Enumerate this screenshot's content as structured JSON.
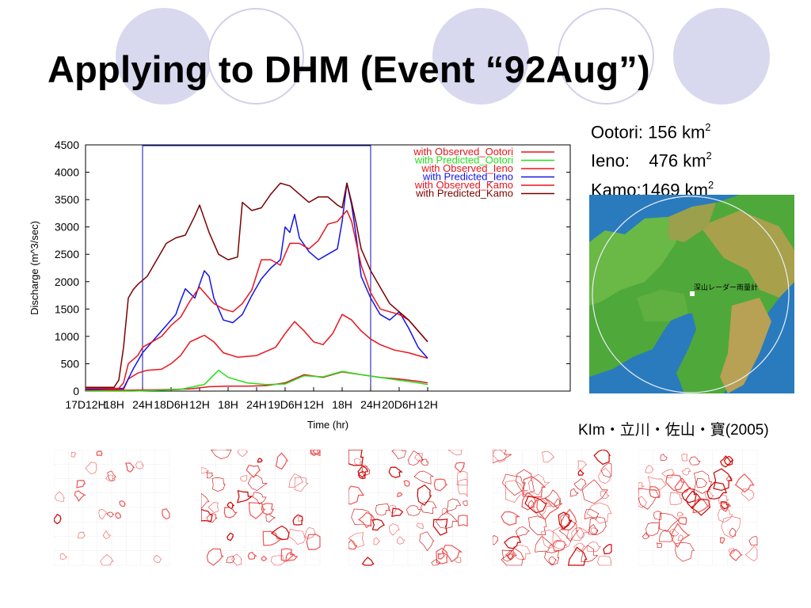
{
  "slide": {
    "title": "Applying to DHM (Event “92Aug”)",
    "areas": [
      {
        "label": "Ootori: 156 km",
        "sup": "2"
      },
      {
        "label": "Ieno:    476 km",
        "sup": "2"
      },
      {
        "label": "Kamo:1469 km",
        "sup": "2"
      }
    ],
    "map_label": "深山レーダー雨量計",
    "citation": "KIm・立川・佐山・寶(2005)"
  },
  "chart_data": {
    "type": "line",
    "xlabel": "Time (hr)",
    "ylabel": "Discharge (m^3/sec)",
    "ylim": [
      0,
      4500
    ],
    "yticks": [
      0,
      500,
      1000,
      1500,
      2000,
      2500,
      3000,
      3500,
      4000,
      4500
    ],
    "xlim": [
      0,
      102
    ],
    "xticks": [
      {
        "x": 0,
        "label": "17D12H"
      },
      {
        "x": 6,
        "label": "18H"
      },
      {
        "x": 12,
        "label": "24H"
      },
      {
        "x": 18,
        "label": "18D6H"
      },
      {
        "x": 24,
        "label": "12H"
      },
      {
        "x": 30,
        "label": "18H"
      },
      {
        "x": 36,
        "label": "24H"
      },
      {
        "x": 42,
        "label": "19D6H"
      },
      {
        "x": 48,
        "label": "12H"
      },
      {
        "x": 54,
        "label": "18H"
      },
      {
        "x": 60,
        "label": "24H"
      },
      {
        "x": 66,
        "label": "20D6H"
      },
      {
        "x": 72,
        "label": "12H"
      }
    ],
    "legend_position": "top-right",
    "series": [
      {
        "name": "with Observed_Ootori",
        "color": "#e8141c",
        "points": [
          [
            0,
            10
          ],
          [
            5,
            10
          ],
          [
            8,
            15
          ],
          [
            12,
            20
          ],
          [
            16,
            25
          ],
          [
            22,
            40
          ],
          [
            26,
            80
          ],
          [
            30,
            90
          ],
          [
            34,
            90
          ],
          [
            38,
            100
          ],
          [
            42,
            150
          ],
          [
            46,
            300
          ],
          [
            50,
            250
          ],
          [
            54,
            350
          ],
          [
            58,
            300
          ],
          [
            62,
            250
          ],
          [
            66,
            220
          ],
          [
            70,
            180
          ],
          [
            72,
            150
          ]
        ]
      },
      {
        "name": "with Predicted_Ootori",
        "color": "#22e01a",
        "points": [
          [
            0,
            0
          ],
          [
            10,
            0
          ],
          [
            14,
            10
          ],
          [
            20,
            30
          ],
          [
            25,
            120
          ],
          [
            28,
            380
          ],
          [
            30,
            250
          ],
          [
            34,
            150
          ],
          [
            38,
            120
          ],
          [
            42,
            130
          ],
          [
            46,
            280
          ],
          [
            50,
            260
          ],
          [
            54,
            360
          ],
          [
            58,
            300
          ],
          [
            62,
            250
          ],
          [
            66,
            200
          ],
          [
            70,
            150
          ],
          [
            72,
            120
          ]
        ]
      },
      {
        "name": "with Observed_Ieno",
        "color": "#e8141c",
        "points": [
          [
            0,
            20
          ],
          [
            8,
            30
          ],
          [
            9,
            220
          ],
          [
            11,
            330
          ],
          [
            13,
            380
          ],
          [
            16,
            400
          ],
          [
            18,
            500
          ],
          [
            20,
            650
          ],
          [
            22,
            900
          ],
          [
            25,
            1020
          ],
          [
            27,
            900
          ],
          [
            29,
            700
          ],
          [
            32,
            620
          ],
          [
            36,
            650
          ],
          [
            40,
            800
          ],
          [
            42,
            1050
          ],
          [
            44,
            1270
          ],
          [
            46,
            1100
          ],
          [
            48,
            900
          ],
          [
            50,
            850
          ],
          [
            52,
            1050
          ],
          [
            54,
            1400
          ],
          [
            56,
            1300
          ],
          [
            58,
            1100
          ],
          [
            60,
            950
          ],
          [
            62,
            850
          ],
          [
            65,
            750
          ],
          [
            68,
            700
          ],
          [
            70,
            650
          ],
          [
            72,
            600
          ]
        ]
      },
      {
        "name": "with Predicted_Ieno",
        "color": "#1414e8",
        "points": [
          [
            0,
            30
          ],
          [
            8,
            50
          ],
          [
            10,
            400
          ],
          [
            12,
            700
          ],
          [
            14,
            900
          ],
          [
            16,
            1100
          ],
          [
            18,
            1300
          ],
          [
            19,
            1400
          ],
          [
            20,
            1650
          ],
          [
            21,
            1870
          ],
          [
            23,
            1700
          ],
          [
            25,
            2200
          ],
          [
            26,
            2100
          ],
          [
            27,
            1700
          ],
          [
            29,
            1300
          ],
          [
            31,
            1250
          ],
          [
            33,
            1400
          ],
          [
            35,
            1750
          ],
          [
            37,
            2050
          ],
          [
            39,
            2250
          ],
          [
            41,
            2400
          ],
          [
            42,
            3000
          ],
          [
            43,
            2900
          ],
          [
            44,
            3230
          ],
          [
            45,
            2800
          ],
          [
            47,
            2550
          ],
          [
            49,
            2400
          ],
          [
            51,
            2500
          ],
          [
            53,
            2600
          ],
          [
            54,
            3100
          ],
          [
            55,
            3800
          ],
          [
            56,
            3400
          ],
          [
            57,
            2800
          ],
          [
            58,
            2100
          ],
          [
            60,
            1700
          ],
          [
            62,
            1400
          ],
          [
            64,
            1300
          ],
          [
            66,
            1450
          ],
          [
            68,
            1150
          ],
          [
            70,
            800
          ],
          [
            72,
            600
          ]
        ]
      },
      {
        "name": "with Observed_Kamo",
        "color": "#e8141c",
        "points": [
          [
            0,
            50
          ],
          [
            7,
            50
          ],
          [
            8,
            150
          ],
          [
            9,
            500
          ],
          [
            11,
            650
          ],
          [
            12,
            800
          ],
          [
            14,
            900
          ],
          [
            16,
            1000
          ],
          [
            18,
            1200
          ],
          [
            20,
            1350
          ],
          [
            22,
            1650
          ],
          [
            24,
            1900
          ],
          [
            25,
            1800
          ],
          [
            27,
            1600
          ],
          [
            29,
            1500
          ],
          [
            31,
            1450
          ],
          [
            33,
            1600
          ],
          [
            35,
            1850
          ],
          [
            37,
            2400
          ],
          [
            39,
            2400
          ],
          [
            41,
            2300
          ],
          [
            43,
            2700
          ],
          [
            45,
            2700
          ],
          [
            47,
            2600
          ],
          [
            49,
            2750
          ],
          [
            51,
            3050
          ],
          [
            53,
            3100
          ],
          [
            55,
            3300
          ],
          [
            56,
            3100
          ],
          [
            57,
            2700
          ],
          [
            58,
            2300
          ],
          [
            60,
            1800
          ],
          [
            62,
            1500
          ],
          [
            64,
            1450
          ],
          [
            66,
            1400
          ],
          [
            68,
            1300
          ],
          [
            70,
            1100
          ],
          [
            72,
            900
          ]
        ]
      },
      {
        "name": "with Predicted_Kamo",
        "color": "#7a0000",
        "points": [
          [
            0,
            70
          ],
          [
            6,
            70
          ],
          [
            7,
            200
          ],
          [
            8,
            800
          ],
          [
            9,
            1700
          ],
          [
            10,
            1850
          ],
          [
            11,
            1950
          ],
          [
            13,
            2100
          ],
          [
            15,
            2400
          ],
          [
            17,
            2700
          ],
          [
            19,
            2800
          ],
          [
            21,
            2850
          ],
          [
            23,
            3200
          ],
          [
            24,
            3400
          ],
          [
            26,
            2900
          ],
          [
            28,
            2500
          ],
          [
            30,
            2400
          ],
          [
            32,
            2450
          ],
          [
            33,
            3450
          ],
          [
            35,
            3300
          ],
          [
            37,
            3350
          ],
          [
            39,
            3600
          ],
          [
            41,
            3800
          ],
          [
            43,
            3750
          ],
          [
            45,
            3600
          ],
          [
            47,
            3450
          ],
          [
            49,
            3550
          ],
          [
            51,
            3550
          ],
          [
            53,
            3400
          ],
          [
            54,
            3350
          ],
          [
            55,
            3800
          ],
          [
            56,
            3450
          ],
          [
            57,
            3050
          ],
          [
            58,
            2600
          ],
          [
            60,
            2200
          ],
          [
            62,
            1900
          ],
          [
            64,
            1600
          ],
          [
            66,
            1450
          ],
          [
            68,
            1300
          ],
          [
            70,
            1100
          ],
          [
            72,
            900
          ]
        ]
      }
    ]
  }
}
